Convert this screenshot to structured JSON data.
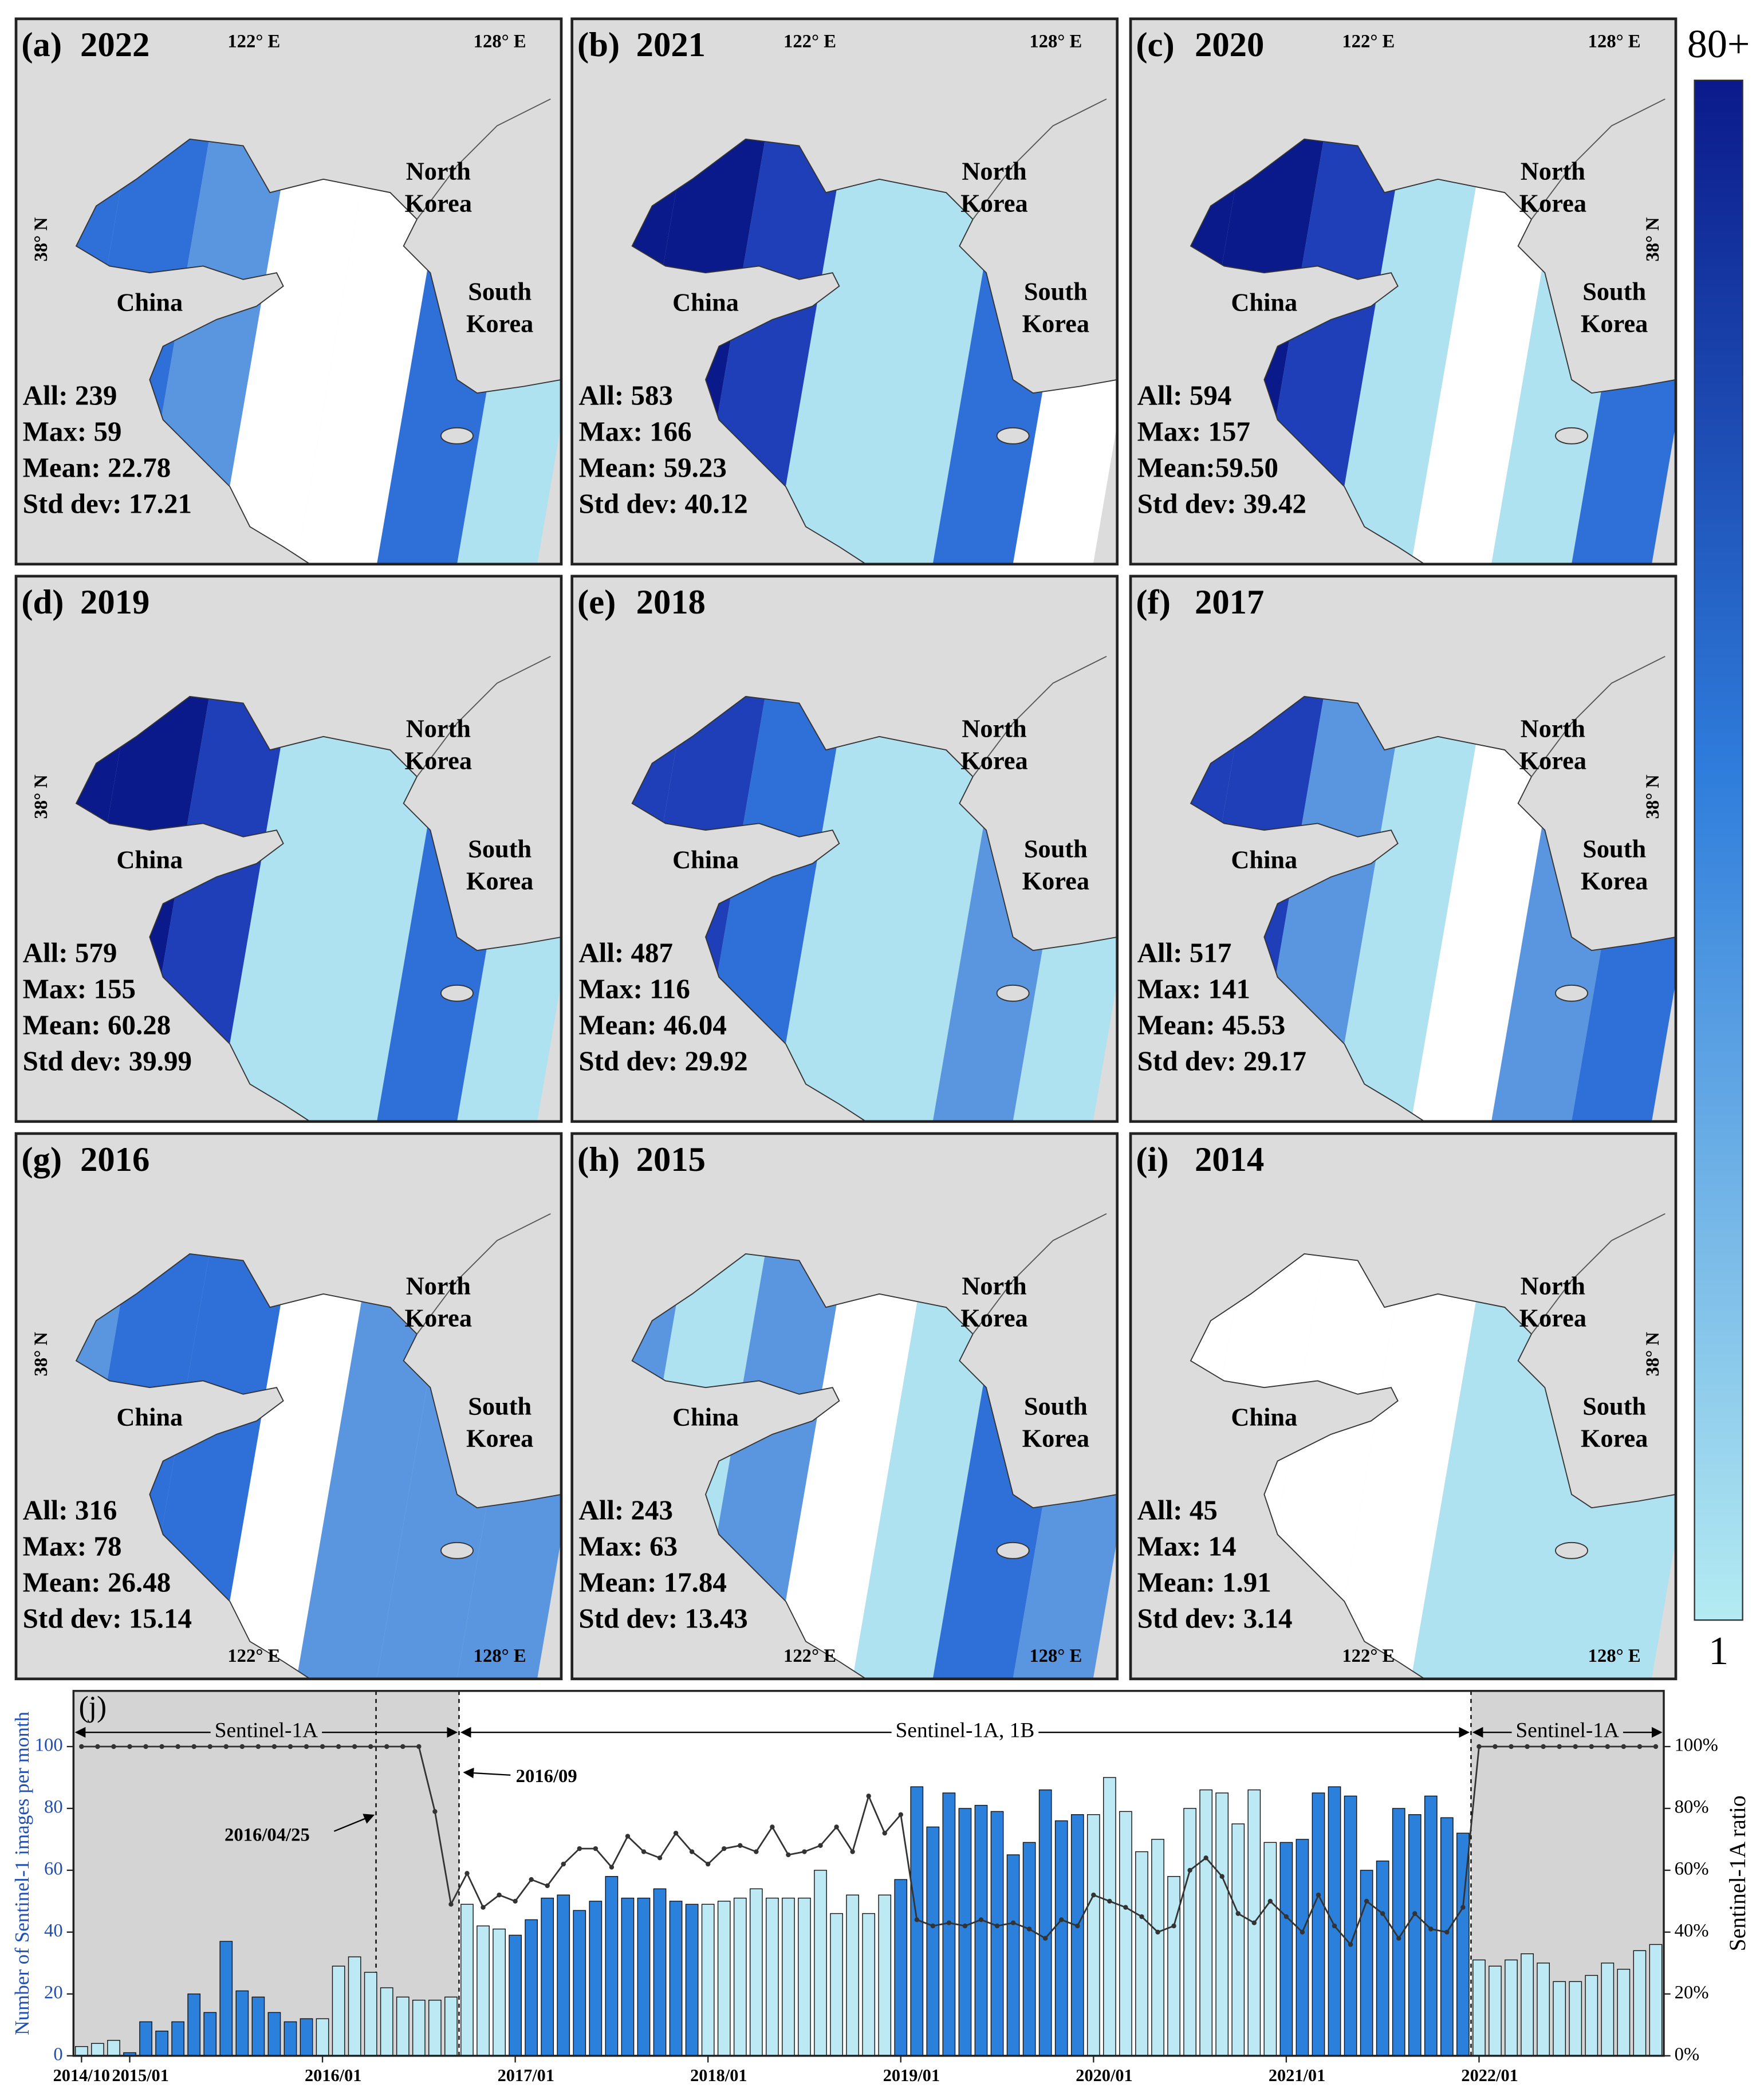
{
  "panels": [
    {
      "label": "(a)",
      "year": "2022",
      "stats": [
        "All: 239",
        "Max: 59",
        "Mean: 22.78",
        "Std dev: 17.21"
      ]
    },
    {
      "label": "(b)",
      "year": "2021",
      "stats": [
        "All: 583",
        "Max: 166",
        "Mean: 59.23",
        "Std dev: 40.12"
      ]
    },
    {
      "label": "(c)",
      "year": "2020",
      "stats": [
        "All: 594",
        "Max: 157",
        "Mean:59.50",
        "Std dev: 39.42"
      ]
    },
    {
      "label": "(d)",
      "year": "2019",
      "stats": [
        "All: 579",
        "Max: 155",
        "Mean: 60.28",
        "Std dev: 39.99"
      ]
    },
    {
      "label": "(e)",
      "year": "2018",
      "stats": [
        "All: 487",
        "Max: 116",
        "Mean: 46.04",
        "Std dev: 29.92"
      ]
    },
    {
      "label": "(f)",
      "year": "2017",
      "stats": [
        "All: 517",
        "Max: 141",
        "Mean: 45.53",
        "Std dev: 29.17"
      ]
    },
    {
      "label": "(g)",
      "year": "2016",
      "stats": [
        "All: 316",
        "Max: 78",
        "Mean: 26.48",
        "Std dev: 15.14"
      ]
    },
    {
      "label": "(h)",
      "year": "2015",
      "stats": [
        "All: 243",
        "Max: 63",
        "Mean: 17.84",
        "Std dev: 13.43"
      ]
    },
    {
      "label": "(i)",
      "year": "2014",
      "stats": [
        "All: 45",
        "Max: 14",
        "Mean: 1.91",
        "Std dev: 3.14"
      ]
    }
  ],
  "map_labels": {
    "lon1": "122° E",
    "lon2": "128° E",
    "lat": "38° N",
    "north": [
      "North",
      "Korea"
    ],
    "south": [
      "South",
      "Korea"
    ],
    "china": "China"
  },
  "colorbar": {
    "max_label": "80+",
    "min_label": "1",
    "colors": [
      "#0b1a8a",
      "#2f7ddc",
      "#b4ebf2"
    ]
  },
  "chart_data": {
    "type": "bar",
    "panel_label": "(j)",
    "y_label": "Number of Sentinel-1 images per month",
    "y2_label": "Sentinel-1A ratio",
    "x": [
      "2014/10",
      "2014/11",
      "2014/12",
      "2015/01",
      "2015/02",
      "2015/03",
      "2015/04",
      "2015/05",
      "2015/06",
      "2015/07",
      "2015/08",
      "2015/09",
      "2015/10",
      "2015/11",
      "2015/12",
      "2016/01",
      "2016/02",
      "2016/03",
      "2016/04",
      "2016/05",
      "2016/06",
      "2016/07",
      "2016/08",
      "2016/09",
      "2016/10",
      "2016/11",
      "2016/12",
      "2017/01",
      "2017/02",
      "2017/03",
      "2017/04",
      "2017/05",
      "2017/06",
      "2017/07",
      "2017/08",
      "2017/09",
      "2017/10",
      "2017/11",
      "2017/12",
      "2018/01",
      "2018/02",
      "2018/03",
      "2018/04",
      "2018/05",
      "2018/06",
      "2018/07",
      "2018/08",
      "2018/09",
      "2018/10",
      "2018/11",
      "2018/12",
      "2019/01",
      "2019/02",
      "2019/03",
      "2019/04",
      "2019/05",
      "2019/06",
      "2019/07",
      "2019/08",
      "2019/09",
      "2019/10",
      "2019/11",
      "2019/12",
      "2020/01",
      "2020/02",
      "2020/03",
      "2020/04",
      "2020/05",
      "2020/06",
      "2020/07",
      "2020/08",
      "2020/09",
      "2020/10",
      "2020/11",
      "2020/12",
      "2021/01",
      "2021/02",
      "2021/03",
      "2021/04",
      "2021/05",
      "2021/06",
      "2021/07",
      "2021/08",
      "2021/09",
      "2021/10",
      "2021/11",
      "2021/12",
      "2022/01",
      "2022/02",
      "2022/03",
      "2022/04",
      "2022/05",
      "2022/06",
      "2022/07",
      "2022/08",
      "2022/09",
      "2022/10",
      "2022/11",
      "2022/12"
    ],
    "xticks": [
      "2014/10",
      "2015/01",
      "2016/01",
      "2017/01",
      "2018/01",
      "2019/01",
      "2020/01",
      "2021/01",
      "2022/01"
    ],
    "series": [
      {
        "type": "bar",
        "colors": [
          "#bde9f4",
          "#2b80dc"
        ],
        "values": [
          3,
          4,
          5,
          1,
          11,
          8,
          11,
          20,
          14,
          37,
          21,
          19,
          14,
          11,
          12,
          12,
          29,
          32,
          27,
          22,
          19,
          18,
          18,
          19,
          49,
          42,
          41,
          39,
          44,
          51,
          52,
          47,
          50,
          58,
          51,
          51,
          54,
          50,
          49,
          49,
          50,
          51,
          54,
          51,
          51,
          51,
          60,
          46,
          52,
          46,
          52,
          57,
          87,
          74,
          85,
          80,
          81,
          79,
          65,
          69,
          86,
          76,
          78,
          78,
          90,
          79,
          66,
          70,
          58,
          80,
          86,
          85,
          75,
          86,
          69,
          69,
          70,
          85,
          87,
          84,
          60,
          63,
          80,
          78,
          84,
          77,
          72,
          31,
          29,
          31,
          33,
          30,
          24,
          24,
          26,
          30,
          28,
          34,
          36
        ]
      },
      {
        "type": "line",
        "axis": "y2",
        "color": "#333333",
        "values": [
          100,
          100,
          100,
          100,
          100,
          100,
          100,
          100,
          100,
          100,
          100,
          100,
          100,
          100,
          100,
          100,
          100,
          100,
          100,
          100,
          100,
          100,
          79,
          49,
          59,
          48,
          52,
          50,
          57,
          55,
          62,
          67,
          67,
          61,
          71,
          66,
          64,
          72,
          66,
          62,
          67,
          68,
          66,
          74,
          65,
          66,
          68,
          74,
          66,
          84,
          72,
          78,
          44,
          42,
          43,
          42,
          44,
          42,
          43,
          41,
          38,
          44,
          42,
          52,
          50,
          48,
          45,
          40,
          42,
          60,
          64,
          58,
          46,
          43,
          50,
          45,
          40,
          52,
          42,
          36,
          50,
          46,
          38,
          46,
          41,
          40,
          48,
          100,
          100,
          100,
          100,
          100,
          100,
          100,
          100,
          100,
          100,
          100,
          100
        ]
      }
    ],
    "ylim": [
      0,
      118
    ],
    "yticks": [
      0,
      20,
      40,
      60,
      80,
      100
    ],
    "y2lim": [
      0,
      118
    ],
    "y2ticks": [
      {
        "value": 0,
        "label": "0%"
      },
      {
        "value": 20,
        "label": "20%"
      },
      {
        "value": 40,
        "label": "40%"
      },
      {
        "value": 60,
        "label": "60%"
      },
      {
        "value": 80,
        "label": "80%"
      },
      {
        "value": 100,
        "label": "100%"
      }
    ],
    "annotations": [
      "Sentinel-1A",
      "Sentinel-1A, 1B",
      "Sentinel-1A",
      "2016/04/25",
      "2016/09"
    ]
  }
}
